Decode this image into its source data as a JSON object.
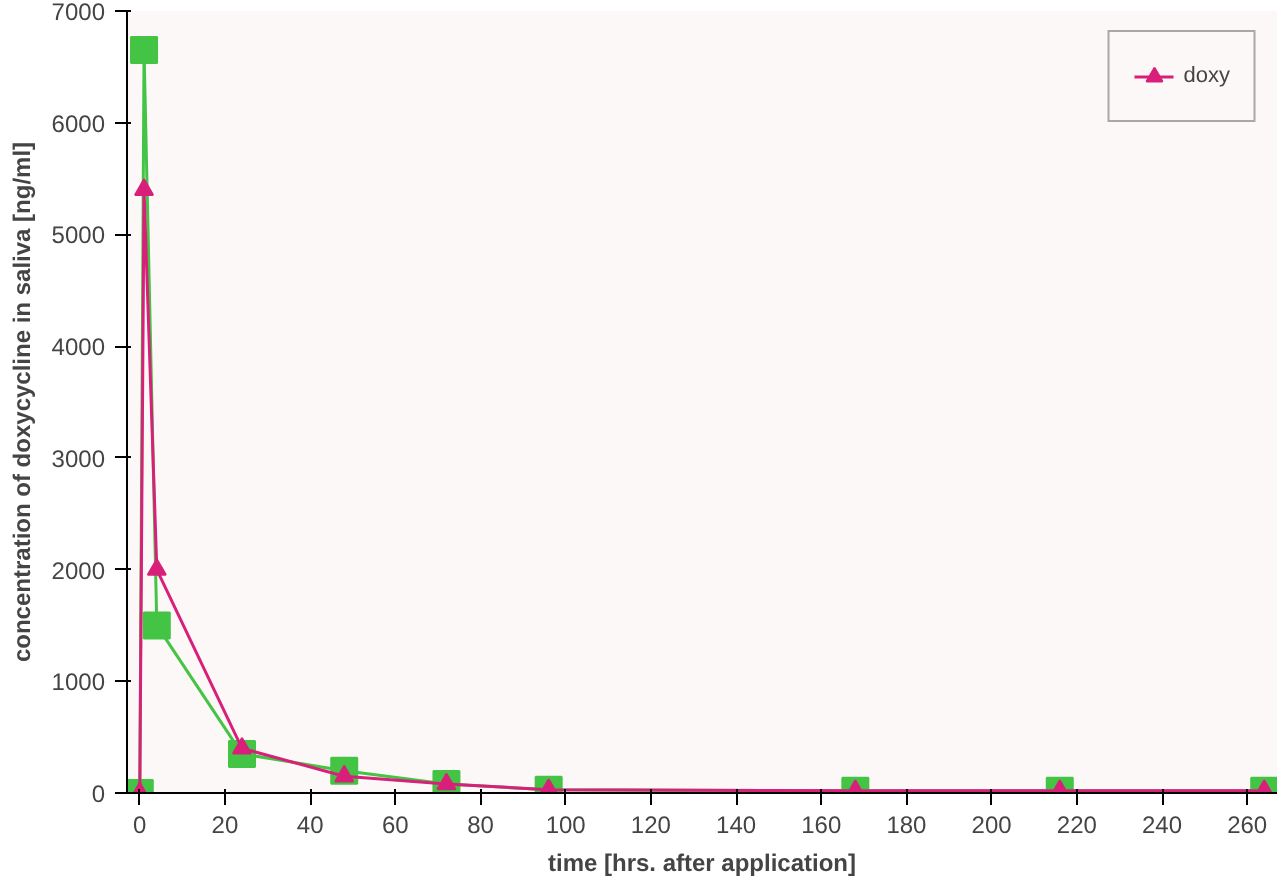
{
  "chart_data": {
    "type": "line",
    "xlabel": "time [hrs. after application]",
    "ylabel": "concentration of doxycycline in saliva [ng/ml]",
    "x": [
      0,
      1,
      4,
      24,
      48,
      72,
      96,
      168,
      216,
      264
    ],
    "series": [
      {
        "color": "#44c444",
        "marker": "square",
        "values": [
          0,
          6650,
          1500,
          350,
          200,
          80,
          30,
          20,
          20,
          20
        ]
      },
      {
        "name": "doxy",
        "color": "#d8207a",
        "marker": "triangle",
        "values": [
          0,
          5400,
          2000,
          400,
          150,
          80,
          30,
          20,
          20,
          20
        ]
      }
    ],
    "xlim": [
      -3,
      267
    ],
    "ylim": [
      0,
      7000
    ],
    "xticks": [
      0,
      20,
      40,
      60,
      80,
      100,
      120,
      140,
      160,
      180,
      200,
      220,
      240,
      260
    ],
    "yticks": [
      0,
      1000,
      2000,
      3000,
      4000,
      5000,
      6000,
      7000
    ],
    "grid": false,
    "legend": "top right"
  }
}
